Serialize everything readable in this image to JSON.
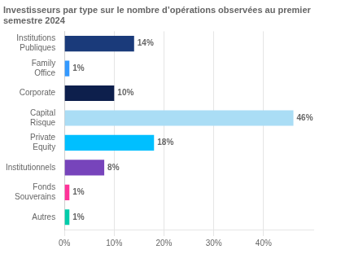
{
  "chart_data": {
    "type": "bar",
    "orientation": "horizontal",
    "title": "Investisseurs par type sur le nombre d’opérations observées au premier semestre 2024",
    "categories": [
      "Institutions\nPubliques",
      "Family\nOffice",
      "Corporate",
      "Capital\nRisque",
      "Private\nEquity",
      "Institutionnels",
      "Fonds\nSouverains",
      "Autres"
    ],
    "values": [
      14,
      1,
      10,
      46,
      18,
      8,
      1,
      1
    ],
    "value_labels": [
      "14%",
      "1%",
      "10%",
      "46%",
      "18%",
      "8%",
      "1%",
      "1%"
    ],
    "colors": [
      "#1a3a7a",
      "#3399ff",
      "#0d1f4c",
      "#aaddf5",
      "#00bfff",
      "#7744bb",
      "#ff3399",
      "#00ccaa"
    ],
    "xlim": [
      0,
      50
    ],
    "xticks": [
      {
        "value": 0,
        "label": "0%"
      },
      {
        "value": 10,
        "label": "10%"
      },
      {
        "value": 20,
        "label": "20%"
      },
      {
        "value": 30,
        "label": "30%"
      },
      {
        "value": 40,
        "label": "40%"
      }
    ],
    "grid": true,
    "data_labels": true
  }
}
